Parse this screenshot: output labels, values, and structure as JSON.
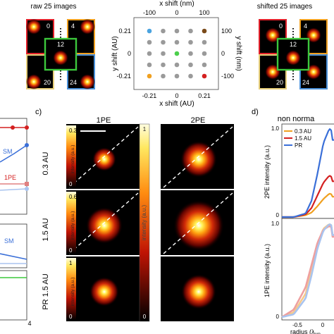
{
  "panel_a": {
    "raw_title": "raw 25 images",
    "shifted_title": "shifted 25 images",
    "tile_labels": {
      "tl": "0",
      "tr": "4",
      "center": "12",
      "bl": "20",
      "br": "24"
    },
    "tile_colors": {
      "tl": "#e2202a",
      "tr": "#f0a020",
      "center": "#3cc83c",
      "bl": "#e7cf7b",
      "br": "#4a90d9"
    }
  },
  "grid": {
    "x_top_label": "x shift (nm)",
    "x_top_ticks": [
      "-100",
      "0",
      "100"
    ],
    "x_bottom_label": "x shift (AU)",
    "x_bottom_ticks": [
      "-0.21",
      "0",
      "0.21"
    ],
    "y_left_label": "y shift (AU)",
    "y_left_ticks": [
      "0.21",
      "0",
      "-0.21"
    ],
    "y_right_label": "y shift (nm)",
    "y_right_ticks": [
      "100",
      "0",
      "-100"
    ],
    "dot_color": "#9a9a9a",
    "highlight_dots": [
      {
        "row": 0,
        "col": 0,
        "color": "#4aa3df"
      },
      {
        "row": 0,
        "col": 4,
        "color": "#7a4a1a"
      },
      {
        "row": 2,
        "col": 2,
        "color": "#4ccf4c"
      },
      {
        "row": 4,
        "col": 0,
        "color": "#f0a020"
      },
      {
        "row": 4,
        "col": 4,
        "color": "#d42020"
      }
    ]
  },
  "panel_b_partial": {
    "label_1pe": "1PE",
    "label_sm_top": "SM",
    "label_sm_bottom": "SM",
    "x_tick": "4"
  },
  "panel_c": {
    "label": "c)",
    "col_titles": [
      "1PE",
      "2PE"
    ],
    "rows": [
      {
        "label": "0.3 AU",
        "cbar_max": "0.3",
        "cbar_min": "0"
      },
      {
        "label": "1.5 AU",
        "cbar_max": "0.6",
        "cbar_min": "0"
      },
      {
        "label": "PR 1.5 AU",
        "cbar_max": "1",
        "cbar_min": "0"
      }
    ],
    "cbar_axis_label": "intensity (a.u.)",
    "big_cbar_label": "intensity (a.u.)",
    "big_cbar_max": "1",
    "big_cbar_min": "0"
  },
  "panel_d": {
    "label": "d)",
    "title": "non norma",
    "top": {
      "ylabel": "2PE intensity (a.u.)",
      "ytick_top": "1.0",
      "ytick_bottom": "0",
      "legend": [
        {
          "name": "0.3 AU",
          "color": "#f0a020"
        },
        {
          "name": "1.5 AU",
          "color": "#d42020"
        },
        {
          "name": "PR",
          "color": "#3a6fd8"
        }
      ]
    },
    "bottom": {
      "ylabel": "1PE intensity (a.u.)",
      "ytick_top": "1.0",
      "ytick_bottom": "0"
    },
    "x_ticks": [
      "-0.5",
      "0"
    ],
    "xlabel": "radius (λ",
    "xlabel_sub": "em"
  },
  "chart_data": {
    "type": "line",
    "title": "non norma",
    "xlabel": "radius (λem)",
    "ylabel": "2PE intensity (a.u.)",
    "ylim": [
      0,
      1.0
    ],
    "x": [
      -0.8,
      -0.6,
      -0.4,
      -0.3,
      -0.2,
      -0.1,
      0.0,
      0.05
    ],
    "series": [
      {
        "name": "0.3 AU",
        "values": [
          0.0,
          0.0,
          0.02,
          0.05,
          0.12,
          0.2,
          0.26,
          0.25
        ]
      },
      {
        "name": "1.5 AU",
        "values": [
          0.0,
          0.0,
          0.03,
          0.1,
          0.24,
          0.38,
          0.46,
          0.44
        ]
      },
      {
        "name": "PR",
        "values": [
          0.0,
          0.0,
          0.04,
          0.18,
          0.48,
          0.82,
          0.98,
          0.95
        ]
      }
    ]
  }
}
